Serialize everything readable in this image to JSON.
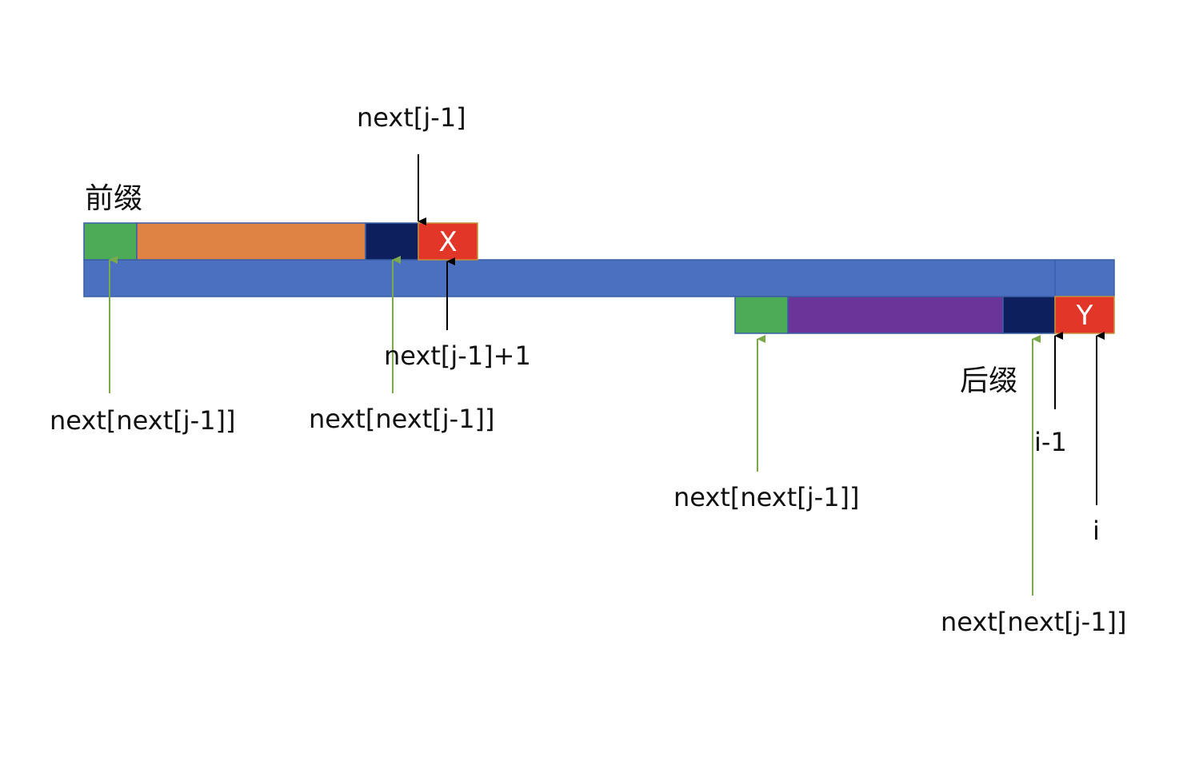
{
  "colors": {
    "main_bar": "#4A70BF",
    "main_bar_border": "#3A5FA8",
    "green": "#4DAA57",
    "orange": "#DF8344",
    "purple": "#6A3499",
    "navy": "#0D1F5C",
    "red": "#E23628",
    "black_arrow": "#000000",
    "green_arrow": "#7AAA4A"
  },
  "labels": {
    "prefix": "前缀",
    "suffix": "后缀",
    "cell_x": "X",
    "cell_y": "Y",
    "next_j_minus_1": "next[j-1]",
    "next_j_minus_1_plus_1": "next[j-1]+1",
    "next_next_1": "next[next[j-1]]",
    "next_next_2": "next[next[j-1]]",
    "next_next_3": "next[next[j-1]]",
    "next_next_4": "next[next[j-1]]",
    "i_minus_1": "i-1",
    "i": "i"
  }
}
